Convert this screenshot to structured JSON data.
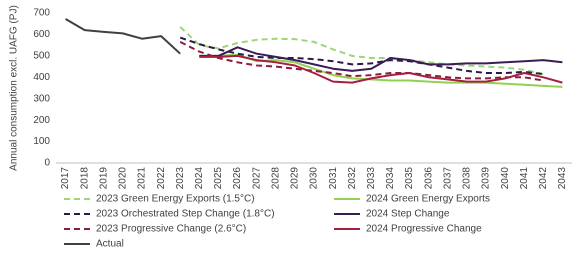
{
  "chart_data": {
    "type": "line",
    "y_label": "Annual consumption excl. UAFG (PJ)",
    "categories": [
      "2017",
      "2018",
      "2019",
      "2020",
      "2021",
      "2022",
      "2023",
      "2024",
      "2025",
      "2026",
      "2027",
      "2028",
      "2029",
      "2030",
      "2031",
      "2032",
      "2033",
      "2034",
      "2035",
      "2036",
      "2037",
      "2038",
      "2039",
      "2040",
      "2041",
      "2042",
      "2043"
    ],
    "ylim": [
      0,
      700
    ],
    "yticks": [
      0,
      100,
      200,
      300,
      400,
      500,
      600,
      700
    ],
    "grid": false,
    "legend": "bottom",
    "series": [
      {
        "name": "2023 Green Energy Exports (1.5°C)",
        "color": "#9ed47a",
        "dashed": true,
        "values": [
          null,
          null,
          null,
          null,
          null,
          null,
          635,
          550,
          535,
          560,
          575,
          580,
          578,
          565,
          530,
          500,
          490,
          490,
          480,
          470,
          460,
          455,
          450,
          445,
          435,
          415,
          null
        ]
      },
      {
        "name": "2024 Green Energy Exports",
        "color": "#92d050",
        "dashed": false,
        "values": [
          null,
          null,
          null,
          null,
          null,
          null,
          null,
          500,
          500,
          505,
          475,
          480,
          470,
          440,
          410,
          395,
          390,
          385,
          385,
          380,
          375,
          375,
          375,
          370,
          365,
          360,
          355
        ]
      },
      {
        "name": "2023 Orchestrated Step Change (1.8°C)",
        "color": "#2b1a4a",
        "dashed": true,
        "values": [
          null,
          null,
          null,
          null,
          null,
          null,
          585,
          555,
          530,
          510,
          495,
          490,
          490,
          485,
          475,
          460,
          465,
          480,
          475,
          460,
          445,
          430,
          420,
          420,
          425,
          415,
          null
        ]
      },
      {
        "name": "2024 Step Change",
        "color": "#3a1c55",
        "dashed": false,
        "values": [
          null,
          null,
          null,
          null,
          null,
          null,
          null,
          500,
          500,
          540,
          510,
          495,
          480,
          460,
          440,
          430,
          440,
          490,
          480,
          460,
          460,
          465,
          465,
          470,
          475,
          480,
          470
        ]
      },
      {
        "name": "2023 Progressive Change (2.6°C)",
        "color": "#8e1c3c",
        "dashed": true,
        "values": [
          null,
          null,
          null,
          null,
          null,
          null,
          565,
          520,
          490,
          470,
          455,
          450,
          440,
          430,
          420,
          405,
          410,
          420,
          420,
          410,
          400,
          395,
          395,
          400,
          400,
          385,
          null
        ]
      },
      {
        "name": "2024 Progressive Change",
        "color": "#a3203f",
        "dashed": false,
        "values": [
          null,
          null,
          null,
          null,
          null,
          null,
          null,
          495,
          495,
          500,
          480,
          470,
          455,
          420,
          380,
          375,
          395,
          410,
          420,
          400,
          390,
          380,
          380,
          395,
          420,
          400,
          375
        ]
      },
      {
        "name": "Actual",
        "color": "#404040",
        "dashed": false,
        "values": [
          672,
          620,
          612,
          605,
          580,
          592,
          510,
          null,
          null,
          null,
          null,
          null,
          null,
          null,
          null,
          null,
          null,
          null,
          null,
          null,
          null,
          null,
          null,
          null,
          null,
          null,
          null
        ]
      }
    ]
  }
}
